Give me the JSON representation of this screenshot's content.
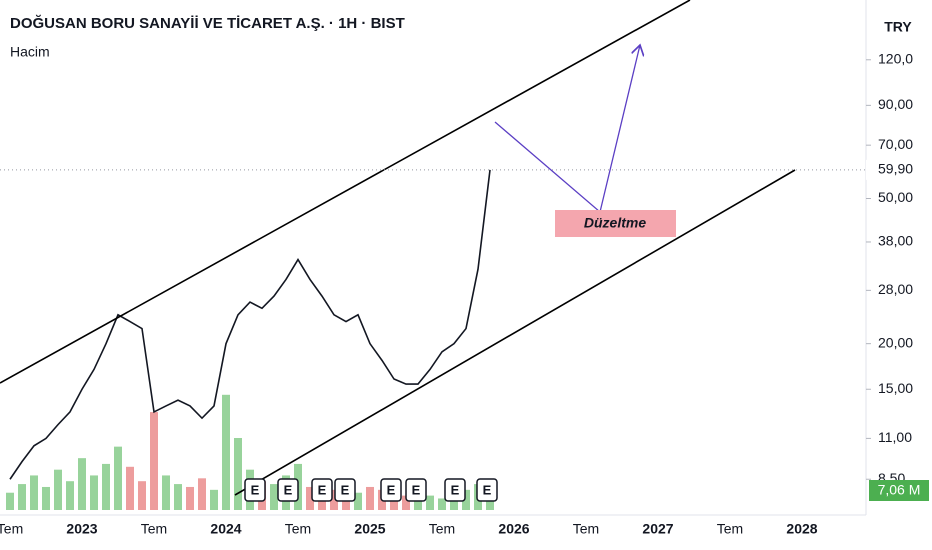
{
  "chart_data": {
    "type": "line",
    "title": "DOĞUSAN BORU SANAYİİ VE TİCARET A.Ş. · 1H · BIST",
    "currency": "TRY",
    "annotation": "Düzeltme",
    "events": [
      "E",
      "E",
      "E",
      "E",
      "E",
      "E",
      "E",
      "E"
    ],
    "log_scale": true,
    "categories": [
      "Tem",
      null,
      null,
      null,
      null,
      null,
      "2023",
      null,
      null,
      null,
      null,
      null,
      "Tem",
      null,
      null,
      null,
      null,
      null,
      "2024",
      null,
      null,
      null,
      null,
      null,
      "Tem",
      null,
      null,
      null,
      null,
      null,
      "2025",
      null,
      null,
      null,
      null,
      null,
      "Tem",
      null,
      null,
      null,
      null,
      null,
      "2026",
      null,
      null,
      null,
      null,
      null,
      "Tem",
      null,
      null,
      null,
      null,
      null,
      "2027",
      null,
      null,
      null,
      null,
      null,
      "Tem",
      null,
      null,
      null,
      null,
      null,
      "2028"
    ],
    "series": [
      {
        "color": "#131722",
        "values": [
          8.5,
          9.5,
          10.5,
          11,
          12,
          13,
          15,
          17,
          20,
          24,
          23,
          22,
          13,
          13.5,
          14,
          13.5,
          12.5,
          13.5,
          20,
          24,
          26,
          25,
          27,
          30,
          34,
          30,
          27,
          24,
          23,
          24,
          20,
          18,
          16,
          15.5,
          15.5,
          17,
          19,
          20,
          22,
          32,
          59.9,
          null,
          null,
          null,
          null,
          null,
          null,
          null,
          null,
          null,
          null,
          null,
          null,
          null,
          null,
          null,
          null,
          null,
          null,
          null,
          null,
          null,
          null,
          null,
          null,
          null,
          null
        ],
        "value_labels": [
          null,
          null,
          null,
          null,
          null,
          null,
          null,
          null,
          null,
          null,
          null,
          null,
          null,
          null,
          null,
          null,
          null,
          null,
          null,
          null,
          null,
          null,
          null,
          null,
          null,
          null,
          null,
          null,
          null,
          null,
          null,
          null,
          null,
          null,
          null,
          null,
          null,
          null,
          null,
          null,
          "59,90",
          null,
          null,
          null,
          null,
          null,
          null,
          null,
          null,
          null,
          null,
          null,
          null,
          null,
          null,
          null,
          null,
          null,
          null,
          null,
          null,
          null,
          null,
          null,
          null,
          null,
          null
        ]
      },
      {
        "name": "Hacim",
        "axis": "y2",
        "up_color": "#6cc070",
        "down_color": "#e57373",
        "values": [
          6,
          9,
          12,
          8,
          14,
          10,
          18,
          12,
          16,
          22,
          15,
          10,
          34,
          12,
          9,
          8,
          11,
          7,
          40,
          25,
          14,
          10,
          9,
          12,
          16,
          8,
          6,
          7,
          5,
          6,
          8,
          7,
          6,
          5,
          6,
          5,
          4,
          5,
          7,
          9,
          7.06,
          null,
          null,
          null,
          null,
          null,
          null,
          null,
          null,
          null,
          null,
          null,
          null,
          null,
          null,
          null,
          null,
          null,
          null,
          null,
          null,
          null,
          null,
          null,
          null,
          null,
          null
        ],
        "value_labels": [
          null,
          null,
          null,
          null,
          null,
          null,
          null,
          null,
          null,
          null,
          null,
          null,
          null,
          null,
          null,
          null,
          null,
          null,
          null,
          null,
          null,
          null,
          null,
          null,
          null,
          null,
          null,
          null,
          null,
          null,
          null,
          null,
          null,
          null,
          null,
          null,
          null,
          null,
          null,
          null,
          "7,06 M",
          null,
          null,
          null,
          null,
          null,
          null,
          null,
          null,
          null,
          null,
          null,
          null,
          null,
          null,
          null,
          null,
          null,
          null,
          null,
          null,
          null,
          null,
          null,
          null,
          null,
          null
        ]
      }
    ],
    "ylim": [
      7,
      175
    ],
    "yticks": [
      {
        "value": 120,
        "label": "120,0"
      },
      {
        "value": 90,
        "label": "90,00"
      },
      {
        "value": 70,
        "label": "70,00"
      },
      {
        "value": 50,
        "label": "50,00"
      },
      {
        "value": 38,
        "label": "38,00"
      },
      {
        "value": 28,
        "label": "28,00"
      },
      {
        "value": 20,
        "label": "20,00"
      },
      {
        "value": 15,
        "label": "15,00"
      },
      {
        "value": 11,
        "label": "11,00"
      },
      {
        "value": 8.5,
        "label": "8,50"
      }
    ],
    "y2lim": [
      0,
      100
    ]
  }
}
